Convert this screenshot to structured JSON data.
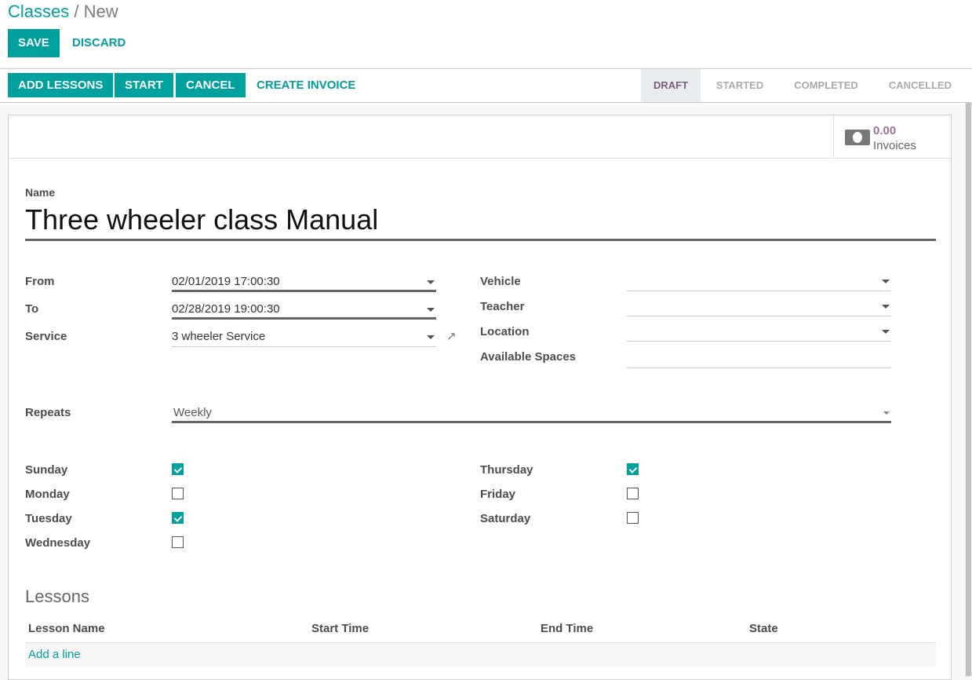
{
  "breadcrumb": {
    "parent": "Classes",
    "separator": "/",
    "current": "New"
  },
  "controls": {
    "save": "SAVE",
    "discard": "DISCARD"
  },
  "header_buttons": {
    "add_lessons": "ADD LESSONS",
    "start": "START",
    "cancel": "CANCEL",
    "create_invoice": "CREATE INVOICE"
  },
  "statusbar": {
    "stages": [
      "DRAFT",
      "STARTED",
      "COMPLETED",
      "CANCELLED"
    ],
    "active": "DRAFT"
  },
  "button_box": {
    "invoices_value": "0.00",
    "invoices_label": "Invoices",
    "icon": "money-icon"
  },
  "form": {
    "name_label": "Name",
    "name_value": "Three wheeler class Manual",
    "from_label": "From",
    "from_value": "02/01/2019 17:00:30",
    "to_label": "To",
    "to_value": "02/28/2019 19:00:30",
    "service_label": "Service",
    "service_value": "3 wheeler Service",
    "vehicle_label": "Vehicle",
    "vehicle_value": "",
    "teacher_label": "Teacher",
    "teacher_value": "",
    "location_label": "Location",
    "location_value": "",
    "spaces_label": "Available Spaces",
    "spaces_value": "",
    "repeats_label": "Repeats",
    "repeats_value": "Weekly",
    "days": [
      {
        "label": "Sunday",
        "checked": true
      },
      {
        "label": "Monday",
        "checked": false
      },
      {
        "label": "Tuesday",
        "checked": true
      },
      {
        "label": "Wednesday",
        "checked": false
      },
      {
        "label": "Thursday",
        "checked": true
      },
      {
        "label": "Friday",
        "checked": false
      },
      {
        "label": "Saturday",
        "checked": false
      }
    ]
  },
  "lessons": {
    "title": "Lessons",
    "columns": [
      "Lesson Name",
      "Start Time",
      "End Time",
      "State"
    ],
    "add_line": "Add a line"
  },
  "colors": {
    "accent": "#00A09D",
    "draft": "#7C5E7C",
    "invoice_value": "#9B7097"
  }
}
